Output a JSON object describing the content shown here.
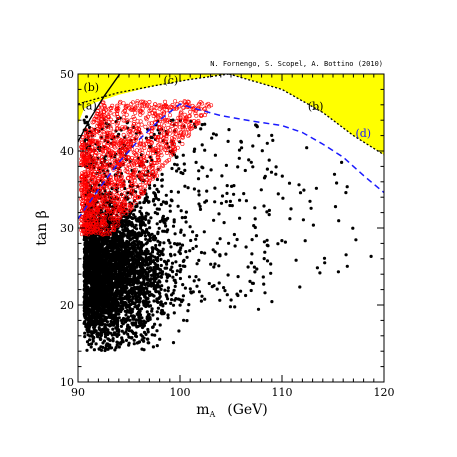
{
  "credit": "N. Fornengo, S. Scopel, A. Bottino  (2010)",
  "colors": {
    "excluded_fill": "#ffff00",
    "curve_d": "#1a1aff",
    "red_points": "#ff0000",
    "black_points": "#000000"
  },
  "chart_data": {
    "type": "scatter",
    "title": "",
    "xlabel_main": "m",
    "xlabel_sub": "A",
    "xlabel_unit": "(GeV)",
    "ylabel": "tan β",
    "xlim": [
      90,
      120
    ],
    "ylim": [
      10,
      50
    ],
    "xticks": [
      90,
      100,
      110,
      120
    ],
    "yticks": [
      10,
      20,
      30,
      40,
      50
    ],
    "grid": false,
    "excluded_region": [
      [
        90.4,
        50
      ],
      [
        104.8,
        50
      ],
      [
        110,
        48
      ],
      [
        114,
        45
      ],
      [
        117,
        42
      ],
      [
        120,
        39.5
      ],
      [
        120,
        50
      ],
      [
        120,
        50
      ]
    ],
    "excluded_region_polygon": [
      [
        90,
        43.5
      ],
      [
        90.6,
        45.5
      ],
      [
        91.7,
        46.3
      ],
      [
        94,
        47.3
      ],
      [
        97,
        48.3
      ],
      [
        101,
        49.3
      ],
      [
        104.8,
        50
      ],
      [
        110,
        48
      ],
      [
        114,
        45
      ],
      [
        117,
        42
      ],
      [
        120,
        39.5
      ],
      [
        120,
        50
      ],
      [
        90,
        50
      ]
    ],
    "boundary_a": [
      [
        90,
        41.2
      ],
      [
        91.2,
        44.2
      ],
      [
        92.6,
        47.2
      ],
      [
        94.1,
        50
      ]
    ],
    "boundary_c": [
      [
        90,
        46.1
      ],
      [
        94,
        47.6
      ],
      [
        98,
        48.6
      ],
      [
        101,
        49.3
      ],
      [
        104.8,
        50
      ]
    ],
    "region_labels": [
      {
        "text": "(b)",
        "x": 91.3,
        "y": 47.8
      },
      {
        "text": "(a)",
        "x": 91.1,
        "y": 45.4
      },
      {
        "text": "(c)",
        "x": 99.1,
        "y": 48.7
      },
      {
        "text": "(b)",
        "x": 113.3,
        "y": 45.3
      }
    ],
    "curve_d": {
      "label": "(d)",
      "label_pos": [
        117.2,
        41.8
      ],
      "points": [
        [
          90,
          31.2
        ],
        [
          92,
          35
        ],
        [
          94,
          38.5
        ],
        [
          96,
          41.5
        ],
        [
          98,
          44
        ],
        [
          100,
          46.1
        ],
        [
          101.5,
          45.5
        ],
        [
          104,
          44.6
        ],
        [
          107,
          43.9
        ],
        [
          110,
          43.3
        ],
        [
          112,
          42.4
        ],
        [
          114,
          40.9
        ],
        [
          116,
          39.2
        ],
        [
          118,
          36.8
        ],
        [
          120,
          34.6
        ]
      ]
    },
    "series": [
      {
        "marker": "open-circle",
        "color": "#ff0000",
        "region": {
          "x_min": 90.3,
          "x_peak": 101.5,
          "y_min": 29,
          "y_max": 46.5
        },
        "count": 1500
      },
      {
        "marker": "filled-dot",
        "color": "#000000",
        "region": {
          "x_min": 90.5,
          "x_max": 120,
          "y_min": 14,
          "y_max": 46
        },
        "count": 4200
      }
    ]
  }
}
